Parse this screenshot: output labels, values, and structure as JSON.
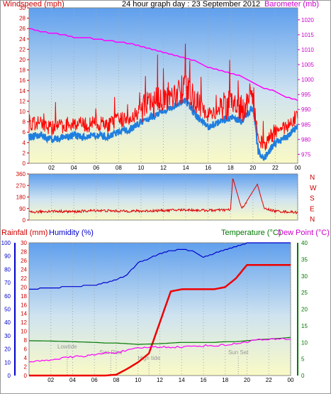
{
  "title": "24 hour graph day : 23 September 2012",
  "colors": {
    "wind": "#ff0000",
    "gust_bg": "#1f7fe0",
    "barometer": "#ff00ff",
    "direction": "#dd0000",
    "humidity": "#0000cc",
    "rain": "#ee0000",
    "temperature": "#007700",
    "dewpoint": "#ff00ff",
    "sky_top": "#6aa8f0",
    "sky_bottom": "#fafac8"
  },
  "chart_data": [
    {
      "type": "line",
      "panel": "wind-barometer",
      "left_label": "Windspeed (mph)",
      "right_label": "Barometer (mb)",
      "x_ticks": [
        "02",
        "04",
        "06",
        "08",
        "10",
        "12",
        "14",
        "16",
        "18",
        "20",
        "22",
        "00"
      ],
      "left_ticks": [
        "0",
        "2",
        "4",
        "6",
        "8",
        "10",
        "12",
        "14",
        "16",
        "18",
        "20",
        "22",
        "24",
        "26",
        "28",
        "30"
      ],
      "right_ticks": [
        "975",
        "980",
        "985",
        "990",
        "995",
        "1000",
        "1005",
        "1010",
        "1015",
        "1020"
      ],
      "ylim_left": [
        0,
        30
      ],
      "ylim_right": [
        972,
        1024
      ],
      "x_hours": [
        0,
        1,
        2,
        3,
        4,
        5,
        6,
        7,
        8,
        9,
        10,
        11,
        12,
        13,
        14,
        15,
        16,
        17,
        18,
        19,
        20,
        20.5,
        21,
        22,
        23,
        24
      ],
      "series": [
        {
          "name": "Windspeed (mph)",
          "axis": "left",
          "values": [
            7,
            7.5,
            6.5,
            7,
            7.5,
            7,
            7.5,
            7,
            8,
            8.5,
            10,
            11,
            12,
            13,
            14,
            11,
            9,
            10,
            11,
            10,
            13,
            4,
            3,
            6,
            7,
            9
          ]
        },
        {
          "name": "Barometer (mb)",
          "axis": "right",
          "values": [
            1017,
            1016,
            1015.5,
            1015,
            1014,
            1014,
            1013.5,
            1013,
            1012.5,
            1012,
            1011,
            1010,
            1009,
            1008,
            1007,
            1006,
            1004,
            1003,
            1002,
            1001,
            999,
            998,
            997,
            996,
            994,
            993
          ]
        }
      ]
    },
    {
      "type": "scatter",
      "panel": "wind-direction",
      "left_ticks": [
        "0",
        "90",
        "180",
        "270",
        "360"
      ],
      "right_ticks": [
        "N",
        "W",
        "S",
        "E",
        "N"
      ],
      "ylim": [
        0,
        360
      ],
      "x_hours": [
        0,
        2,
        4,
        6,
        8,
        10,
        12,
        14,
        16,
        18,
        18.2,
        19,
        20.4,
        21,
        22,
        24
      ],
      "values": [
        60,
        70,
        65,
        75,
        70,
        70,
        75,
        80,
        75,
        80,
        330,
        85,
        280,
        90,
        70,
        60
      ]
    },
    {
      "type": "line",
      "panel": "rain-humidity-temperature",
      "left_label_1": "Rainfall (mm)",
      "left_label_2": "Humidity (%)",
      "right_label_1": "Temperature (°C)",
      "right_label_2": "Dew Point (°C)",
      "rain_ticks": [
        "0",
        "2",
        "4",
        "6",
        "8",
        "10",
        "12",
        "14",
        "16",
        "18",
        "20",
        "22",
        "24",
        "26",
        "28",
        "30"
      ],
      "humidity_ticks": [
        "0",
        "10",
        "20",
        "30",
        "40",
        "50",
        "60",
        "70",
        "80",
        "90",
        "100"
      ],
      "temp_ticks": [
        "0",
        "5",
        "10",
        "15",
        "20",
        "25",
        "30",
        "35",
        "40"
      ],
      "x_ticks": [
        "02",
        "04",
        "06",
        "08",
        "10",
        "12",
        "14",
        "16",
        "18",
        "20",
        "22",
        "00"
      ],
      "annotations": [
        "Lowtide",
        "Sun Rise",
        "High tide",
        "Sun Set"
      ],
      "x_hours": [
        0,
        2,
        4,
        6,
        7,
        8,
        9,
        10,
        11,
        12,
        13,
        14,
        15,
        16,
        17,
        18,
        19,
        20,
        21,
        22,
        23,
        24
      ],
      "series": [
        {
          "name": "Humidity (%)",
          "axis": "humidity",
          "values": [
            65,
            66,
            67,
            68,
            70,
            72,
            76,
            85,
            88,
            92,
            94,
            95,
            94,
            89,
            92,
            95,
            97,
            100,
            100,
            100,
            100,
            100
          ]
        },
        {
          "name": "Rainfall (mm)",
          "axis": "rain",
          "values": [
            0,
            0,
            0,
            0,
            0,
            0.2,
            1.5,
            3,
            5,
            12,
            19,
            19.5,
            19.5,
            19.5,
            19.5,
            20,
            22,
            25,
            25,
            25,
            25,
            25
          ]
        },
        {
          "name": "Temperature (°C)",
          "axis": "temp",
          "values": [
            10.5,
            10.4,
            10.2,
            10,
            9.8,
            9.8,
            9.6,
            9.4,
            9.5,
            9.6,
            9.8,
            10,
            10,
            10,
            10,
            10.2,
            10.2,
            10.5,
            10.8,
            11,
            11.2,
            11.5
          ]
        },
        {
          "name": "Dew Point (°C)",
          "axis": "temp",
          "values": [
            4,
            4.8,
            5.6,
            6.2,
            6.8,
            7,
            7.5,
            8.2,
            8.6,
            8.6,
            8.6,
            8.6,
            8.8,
            9,
            9,
            9.2,
            9.6,
            10.2,
            10.8,
            10.8,
            11,
            11
          ]
        }
      ]
    }
  ]
}
